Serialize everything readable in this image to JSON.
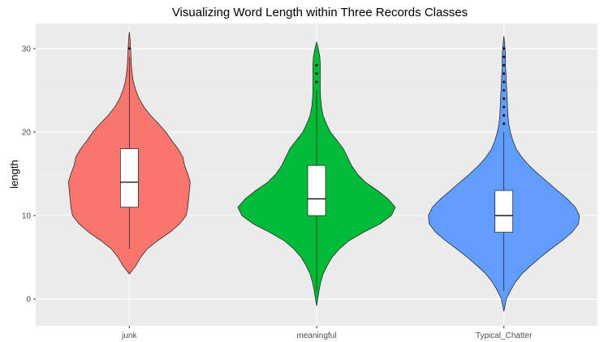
{
  "chart_data": {
    "type": "violin",
    "title": "Visualizing Word Length within Three Records Classes",
    "xlabel": "",
    "ylabel": "length",
    "ylim": [
      -3.2,
      33
    ],
    "yticks": [
      0,
      10,
      20,
      30
    ],
    "grid": true,
    "legend": "none",
    "background": "#ebebeb",
    "categories": [
      "junk",
      "meaningful",
      "Typical_Chatter"
    ],
    "series": [
      {
        "category": "junk",
        "color": "#f8766d",
        "violin": {
          "y": [
            3,
            4,
            5,
            6,
            7,
            8,
            9,
            10,
            11,
            12,
            13,
            14,
            15,
            16,
            17,
            18,
            19,
            20,
            21,
            22,
            23,
            24,
            25,
            26,
            27,
            28,
            29,
            30,
            31,
            32
          ],
          "half_width": [
            0,
            8,
            14,
            22,
            35,
            50,
            62,
            70,
            72,
            73,
            74,
            75,
            72,
            68,
            66,
            60,
            52,
            45,
            36,
            26,
            18,
            12,
            8,
            5,
            3.5,
            2.5,
            2,
            1.5,
            1,
            0
          ]
        },
        "box": {
          "q1": 11,
          "median": 14,
          "q3": 18,
          "whisker_low": 6,
          "whisker_high": 29
        },
        "outliers": [
          30
        ]
      },
      {
        "category": "meaningful",
        "color": "#00ba38",
        "violin": {
          "y": [
            -0.8,
            1,
            2,
            3,
            4,
            5,
            6,
            7,
            8,
            9,
            10,
            11,
            12,
            13,
            14,
            15,
            16,
            17,
            18,
            19,
            20,
            21,
            22,
            23,
            24,
            25,
            26,
            27,
            28,
            29,
            30,
            30.8
          ],
          "half_width": [
            0,
            3,
            5,
            8,
            13,
            19,
            28,
            40,
            58,
            78,
            92,
            97,
            88,
            75,
            60,
            50,
            43,
            38,
            33,
            25,
            17,
            12,
            8,
            6,
            5,
            4.5,
            4.5,
            4.5,
            4.5,
            4,
            2,
            0
          ]
        },
        "box": {
          "q1": 10,
          "median": 12,
          "q3": 16,
          "whisker_low": 1,
          "whisker_high": 25
        },
        "outliers": [
          26,
          27,
          28
        ]
      },
      {
        "category": "Typical_Chatter",
        "color": "#619cff",
        "violin": {
          "y": [
            -1.5,
            0,
            1,
            2,
            3,
            4,
            5,
            6,
            7,
            8,
            9,
            10,
            11,
            12,
            13,
            14,
            15,
            16,
            17,
            18,
            19,
            20,
            21,
            22,
            23,
            24,
            25,
            26,
            27,
            28,
            29,
            30,
            31.5
          ],
          "half_width": [
            0,
            3,
            8,
            14,
            22,
            33,
            45,
            58,
            72,
            84,
            92,
            93,
            88,
            78,
            66,
            54,
            42,
            31,
            22,
            15,
            11,
            8,
            6,
            5,
            4.5,
            4,
            3.5,
            3,
            2.5,
            2,
            2,
            1.5,
            0
          ]
        },
        "box": {
          "q1": 8,
          "median": 10,
          "q3": 13,
          "whisker_low": 1,
          "whisker_high": 20
        },
        "outliers": [
          21,
          22,
          23,
          24,
          25,
          26,
          27,
          28,
          29,
          30
        ]
      }
    ]
  }
}
